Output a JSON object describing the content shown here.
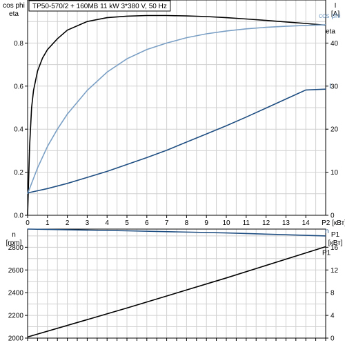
{
  "chart_data": [
    {
      "type": "line",
      "title": "TP50-570/2 + 160MB   11 kW   3*380 V, 50 Hz",
      "x_axis": {
        "label": "P2 [кВт]",
        "ticks": [
          "0",
          "1",
          "2",
          "3",
          "4",
          "5",
          "6",
          "7",
          "8",
          "9",
          "10",
          "11",
          "12",
          "13",
          "14"
        ],
        "xlim": [
          0,
          15
        ]
      },
      "y_axis_left": {
        "label_lines": [
          "cos phi",
          "eta"
        ],
        "ticks": [
          "0.0",
          "0.2",
          "0.4",
          "0.6",
          "0.8"
        ],
        "ylim": [
          0,
          1.0
        ]
      },
      "y_axis_right": {
        "label_lines": [
          "I",
          "[A]"
        ],
        "ticks": [
          "0",
          "10",
          "20",
          "30",
          "40"
        ],
        "ylim": [
          0,
          50
        ]
      },
      "grid": true,
      "series": [
        {
          "name": "eta",
          "axis": "left",
          "color": "#000000",
          "x": [
            0,
            0.1,
            0.2,
            0.3,
            0.5,
            0.75,
            1,
            1.5,
            2,
            3,
            4,
            5,
            6,
            7,
            8,
            9,
            10,
            11,
            12,
            13,
            14,
            15
          ],
          "y": [
            0,
            0.32,
            0.5,
            0.58,
            0.67,
            0.73,
            0.77,
            0.82,
            0.86,
            0.9,
            0.918,
            0.925,
            0.928,
            0.928,
            0.926,
            0.923,
            0.918,
            0.912,
            0.905,
            0.898,
            0.891,
            0.883
          ]
        },
        {
          "name": "cos phi",
          "axis": "left",
          "color": "#7a9fc5",
          "x": [
            0,
            0.5,
            1,
            1.5,
            2,
            3,
            4,
            5,
            6,
            7,
            8,
            9,
            10,
            11,
            12,
            13,
            14,
            15
          ],
          "y": [
            0.1,
            0.22,
            0.32,
            0.4,
            0.47,
            0.58,
            0.665,
            0.727,
            0.77,
            0.8,
            0.825,
            0.843,
            0.856,
            0.866,
            0.873,
            0.878,
            0.882,
            0.885
          ]
        },
        {
          "name": "I",
          "axis": "right",
          "color": "#1f4e82",
          "x": [
            0,
            1,
            2,
            3,
            4,
            5,
            6,
            7,
            8,
            9,
            10,
            11,
            12,
            13,
            14,
            15
          ],
          "y": [
            5.2,
            6.2,
            7.4,
            8.8,
            10.2,
            11.8,
            13.4,
            15.1,
            17.0,
            18.9,
            20.8,
            22.8,
            24.9,
            27.0,
            29.1,
            29.3
          ]
        }
      ]
    },
    {
      "type": "line",
      "x_axis": {
        "ticks": [],
        "xlim": [
          0,
          15
        ]
      },
      "y_axis_left": {
        "label_lines": [
          "n",
          "[rpm]"
        ],
        "ticks": [
          "2000",
          "2200",
          "2400",
          "2600",
          "2800"
        ],
        "ylim": [
          2000,
          2960
        ]
      },
      "y_axis_right": {
        "label_lines": [
          "P1",
          "[кВт]"
        ],
        "ticks": [
          "0",
          "4",
          "8",
          "12",
          "16"
        ],
        "ylim": [
          0,
          19.2
        ]
      },
      "grid": true,
      "series": [
        {
          "name": "n",
          "axis": "left",
          "color": "#1f4e82",
          "x": [
            0,
            5,
            10,
            15
          ],
          "y": [
            2960,
            2945,
            2926,
            2900
          ]
        },
        {
          "name": "P1",
          "axis": "right",
          "color": "#000000",
          "x": [
            0,
            5,
            10,
            15
          ],
          "y": [
            0.2,
            5.3,
            10.6,
            16.1
          ]
        }
      ]
    }
  ]
}
